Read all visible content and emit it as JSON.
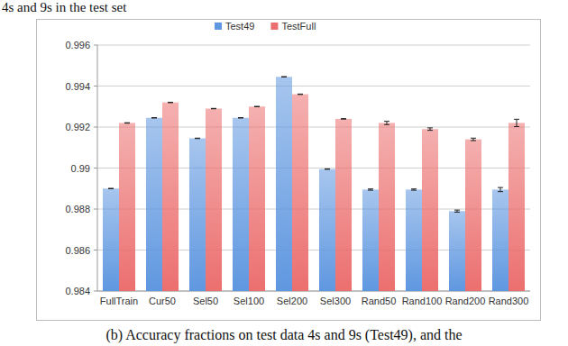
{
  "chart_data": {
    "type": "bar",
    "annotations": [
      "4s and 9s in the test set",
      "(b) Accuracy fractions on test data 4s and 9s (Test49), and the"
    ],
    "categories": [
      "FullTrain",
      "Cur50",
      "Sel50",
      "Sel100",
      "Sel200",
      "Sel300",
      "Rand50",
      "Rand100",
      "Rand200",
      "Rand300"
    ],
    "series": [
      {
        "name": "Test49",
        "color": "#5f97e0",
        "values": [
          0.989,
          0.99245,
          0.99145,
          0.99245,
          0.99445,
          0.98995,
          0.98895,
          0.98895,
          0.9879,
          0.98895
        ],
        "errors": [
          1e-05,
          1e-05,
          1e-05,
          1e-05,
          1e-05,
          1e-05,
          3e-05,
          3e-05,
          5e-05,
          0.0001
        ]
      },
      {
        "name": "TestFull",
        "color": "#ec6f6f",
        "values": [
          0.9922,
          0.9932,
          0.9929,
          0.993,
          0.9936,
          0.9924,
          0.9922,
          0.9919,
          0.9914,
          0.9922
        ],
        "errors": [
          1e-05,
          1e-05,
          1e-05,
          1e-05,
          1e-05,
          1e-05,
          8e-05,
          6e-05,
          6e-05,
          0.00018
        ]
      }
    ],
    "ylim": [
      0.984,
      0.996
    ],
    "yticks": [
      0.984,
      0.986,
      0.988,
      0.99,
      0.992,
      0.994,
      0.996
    ],
    "grid": true,
    "legend": "top"
  }
}
